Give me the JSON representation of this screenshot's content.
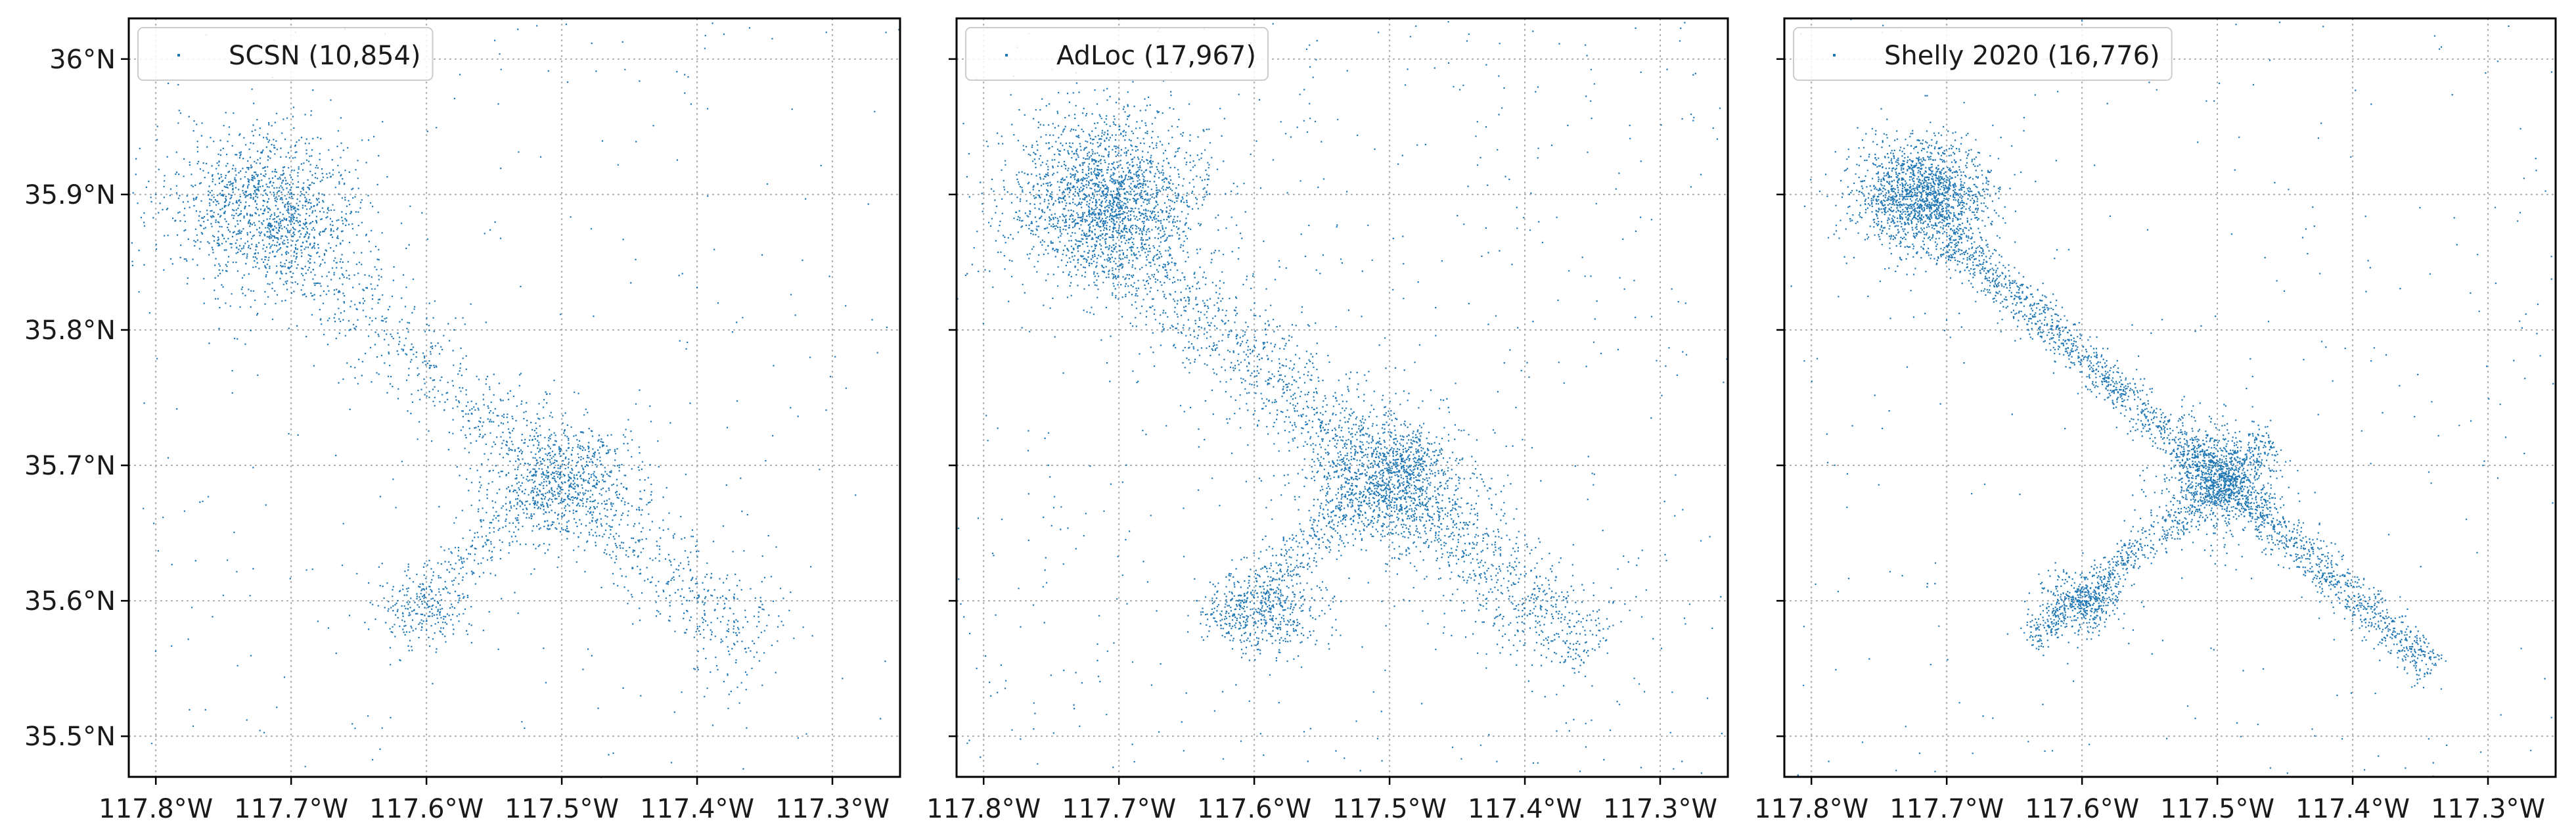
{
  "figure": {
    "background": "#ffffff",
    "point_color": "#1f77b4",
    "grid_color": "#b0b0b0"
  },
  "chart_data": [
    {
      "type": "scatter",
      "legend": "SCSN (10,854)",
      "legend_position": "top-left",
      "grid": true,
      "xlim": [
        -117.82,
        -117.25
      ],
      "ylim": [
        35.47,
        36.03
      ],
      "xticks": [
        -117.8,
        -117.7,
        -117.6,
        -117.5,
        -117.4,
        -117.3
      ],
      "xtick_labels": [
        "117.8°W",
        "117.7°W",
        "117.6°W",
        "117.5°W",
        "117.4°W",
        "117.3°W"
      ],
      "yticks": [
        35.5,
        35.6,
        35.7,
        35.8,
        35.9,
        36.0
      ],
      "ytick_labels": [
        "35.5°N",
        "35.6°N",
        "35.7°N",
        "35.8°N",
        "35.9°N",
        "36°N"
      ],
      "event_count": 10854,
      "clusters": [
        {
          "lon": -117.72,
          "lat": 35.89,
          "sd_lon": 0.035,
          "sd_lat": 0.03,
          "weight": 0.32
        },
        {
          "lon": -117.5,
          "lat": 35.69,
          "sd_lon": 0.03,
          "sd_lat": 0.025,
          "weight": 0.14
        },
        {
          "lon": -117.6,
          "lat": 35.59,
          "sd_lon": 0.02,
          "sd_lat": 0.015,
          "weight": 0.05
        }
      ],
      "trends": [
        {
          "from": [
            -117.72,
            35.88
          ],
          "to": [
            -117.35,
            35.56
          ],
          "spread": 0.018,
          "weight": 0.3
        },
        {
          "from": [
            -117.63,
            35.58
          ],
          "to": [
            -117.47,
            35.72
          ],
          "spread": 0.01,
          "weight": 0.1
        }
      ],
      "background_share": 0.09
    },
    {
      "type": "scatter",
      "legend": "AdLoc (17,967)",
      "legend_position": "top-left",
      "grid": true,
      "xlim": [
        -117.82,
        -117.25
      ],
      "ylim": [
        35.47,
        36.03
      ],
      "xticks": [
        -117.8,
        -117.7,
        -117.6,
        -117.5,
        -117.4,
        -117.3
      ],
      "xtick_labels": [
        "117.8°W",
        "117.7°W",
        "117.6°W",
        "117.5°W",
        "117.4°W",
        "117.3°W"
      ],
      "yticks": [
        35.5,
        35.6,
        35.7,
        35.8,
        35.9,
        36.0
      ],
      "ytick_labels": [
        "35.5°N",
        "35.6°N",
        "35.7°N",
        "35.8°N",
        "35.9°N",
        "36°N"
      ],
      "event_count": 17967,
      "clusters": [
        {
          "lon": -117.71,
          "lat": 35.9,
          "sd_lon": 0.035,
          "sd_lat": 0.03,
          "weight": 0.3
        },
        {
          "lon": -117.5,
          "lat": 35.69,
          "sd_lon": 0.03,
          "sd_lat": 0.025,
          "weight": 0.13
        },
        {
          "lon": -117.59,
          "lat": 35.59,
          "sd_lon": 0.02,
          "sd_lat": 0.015,
          "weight": 0.05
        }
      ],
      "trends": [
        {
          "from": [
            -117.72,
            35.88
          ],
          "to": [
            -117.35,
            35.56
          ],
          "spread": 0.02,
          "weight": 0.32
        },
        {
          "from": [
            -117.63,
            35.58
          ],
          "to": [
            -117.47,
            35.72
          ],
          "spread": 0.012,
          "weight": 0.1
        }
      ],
      "background_share": 0.1
    },
    {
      "type": "scatter",
      "legend": "Shelly 2020 (16,776)",
      "legend_position": "top-left",
      "grid": true,
      "xlim": [
        -117.82,
        -117.25
      ],
      "ylim": [
        35.47,
        36.03
      ],
      "xticks": [
        -117.8,
        -117.7,
        -117.6,
        -117.5,
        -117.4,
        -117.3
      ],
      "xtick_labels": [
        "117.8°W",
        "117.7°W",
        "117.6°W",
        "117.5°W",
        "117.4°W",
        "117.3°W"
      ],
      "yticks": [
        35.5,
        35.6,
        35.7,
        35.8,
        35.9,
        36.0
      ],
      "ytick_labels": [
        "35.5°N",
        "35.6°N",
        "35.7°N",
        "35.8°N",
        "35.9°N",
        "36°N"
      ],
      "event_count": 16776,
      "clusters": [
        {
          "lon": -117.72,
          "lat": 35.9,
          "sd_lon": 0.025,
          "sd_lat": 0.02,
          "weight": 0.28
        },
        {
          "lon": -117.5,
          "lat": 35.69,
          "sd_lon": 0.02,
          "sd_lat": 0.02,
          "weight": 0.14
        },
        {
          "lon": -117.6,
          "lat": 35.6,
          "sd_lon": 0.015,
          "sd_lat": 0.012,
          "weight": 0.06
        }
      ],
      "trends": [
        {
          "from": [
            -117.7,
            35.87
          ],
          "to": [
            -117.34,
            35.55
          ],
          "spread": 0.008,
          "weight": 0.34
        },
        {
          "from": [
            -117.64,
            35.57
          ],
          "to": [
            -117.46,
            35.72
          ],
          "spread": 0.007,
          "weight": 0.13
        }
      ],
      "background_share": 0.05
    }
  ]
}
